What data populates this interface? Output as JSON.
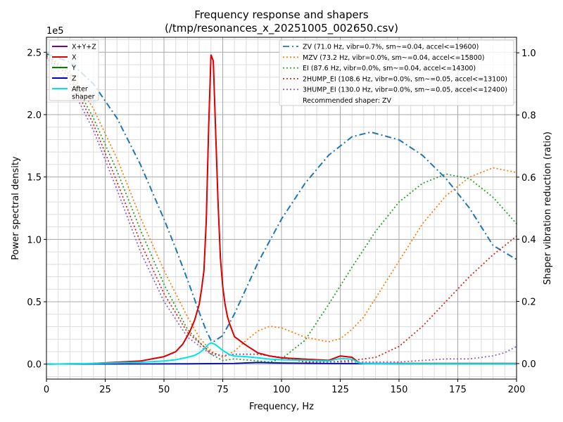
{
  "chart_data": {
    "type": "line",
    "title": "Frequency response and shapers",
    "subtitle": "(/tmp/resonances_x_20251005_002650.csv)",
    "xlabel": "Frequency, Hz",
    "ylabel": "Power spectral density",
    "ylabel_right": "Shaper vibration reduction (ratio)",
    "sci_label": "1e5",
    "xlim": [
      0,
      200
    ],
    "ylim": [
      -0.12,
      2.62
    ],
    "ylim_right": [
      -0.05,
      1.05
    ],
    "x_ticks": [
      0,
      25,
      50,
      75,
      100,
      125,
      150,
      175,
      200
    ],
    "y_ticks": [
      0.0,
      0.5,
      1.0,
      1.5,
      2.0,
      2.5
    ],
    "y_tick_labels": [
      "0.0",
      "0.5",
      "1.0",
      "1.5",
      "2.0",
      "2.5"
    ],
    "y_right_ticks": [
      0.0,
      0.2,
      0.4,
      0.6,
      0.8,
      1.0
    ],
    "y_right_tick_labels": [
      "0.0",
      "0.2",
      "0.4",
      "0.6",
      "0.8",
      "1.0"
    ],
    "x_tick_labels": [
      "0",
      "25",
      "50",
      "75",
      "100",
      "125",
      "150",
      "175",
      "200"
    ],
    "grid": true,
    "psd_series": [
      {
        "name": "X+Y+Z",
        "color": "#800080",
        "dash": "solid",
        "x": [
          0,
          20,
          40,
          50,
          55,
          58,
          61,
          63,
          65,
          66,
          67,
          68,
          69,
          70,
          71,
          72,
          73,
          74,
          75,
          76,
          77,
          78,
          80,
          85,
          90,
          95,
          100,
          110,
          120,
          125,
          130,
          133,
          135,
          150,
          175,
          200
        ],
        "y": [
          0,
          0.005,
          0.025,
          0.06,
          0.1,
          0.16,
          0.26,
          0.35,
          0.48,
          0.6,
          0.75,
          1.15,
          1.9,
          2.48,
          2.43,
          1.85,
          1.3,
          0.85,
          0.62,
          0.48,
          0.38,
          0.32,
          0.22,
          0.15,
          0.09,
          0.065,
          0.05,
          0.04,
          0.03,
          0.065,
          0.055,
          0.01,
          0.005,
          0.005,
          0.005,
          0.005
        ]
      },
      {
        "name": "X",
        "color": "#e00000",
        "dash": "solid",
        "x": [
          0,
          20,
          40,
          50,
          55,
          58,
          61,
          63,
          65,
          66,
          67,
          68,
          69,
          70,
          71,
          72,
          73,
          74,
          75,
          76,
          77,
          78,
          80,
          85,
          90,
          95,
          100,
          110,
          120,
          125,
          130,
          133,
          135,
          150,
          175,
          200
        ],
        "y": [
          0,
          0.005,
          0.025,
          0.06,
          0.1,
          0.16,
          0.26,
          0.35,
          0.48,
          0.6,
          0.75,
          1.15,
          1.9,
          2.48,
          2.43,
          1.85,
          1.3,
          0.85,
          0.62,
          0.48,
          0.38,
          0.32,
          0.22,
          0.15,
          0.09,
          0.065,
          0.05,
          0.04,
          0.03,
          0.065,
          0.055,
          0.01,
          0.005,
          0.005,
          0.005,
          0.005
        ]
      },
      {
        "name": "Y",
        "color": "#008000",
        "dash": "solid",
        "x": [
          0,
          40,
          60,
          80,
          90,
          100,
          120,
          135,
          150,
          200
        ],
        "y": [
          0,
          0.002,
          0.004,
          0.006,
          0.015,
          0.01,
          0.006,
          0.004,
          0.003,
          0.002
        ]
      },
      {
        "name": "Z",
        "color": "#0000c0",
        "dash": "solid",
        "x": [
          0,
          40,
          60,
          80,
          90,
          100,
          120,
          135,
          150,
          200
        ],
        "y": [
          0,
          0.001,
          0.002,
          0.006,
          0.012,
          0.008,
          0.005,
          0.003,
          0.002,
          0.001
        ]
      },
      {
        "name": "After\nshaper",
        "color": "#00e5e5",
        "dash": "solid",
        "x": [
          0,
          20,
          40,
          50,
          55,
          60,
          63,
          65,
          67,
          69,
          70,
          71,
          72,
          73,
          75,
          78,
          80,
          85,
          90,
          95,
          100,
          110,
          120,
          125,
          130,
          133,
          135,
          150,
          200
        ],
        "y": [
          0,
          0.005,
          0.015,
          0.025,
          0.035,
          0.055,
          0.07,
          0.09,
          0.12,
          0.16,
          0.17,
          0.165,
          0.155,
          0.14,
          0.11,
          0.075,
          0.065,
          0.06,
          0.05,
          0.04,
          0.035,
          0.03,
          0.025,
          0.045,
          0.04,
          0.01,
          0.005,
          0.003,
          0.003
        ]
      }
    ],
    "shaper_series": [
      {
        "name": "ZV (71.0 Hz, vibr=0.7%, sm~=0.04, accel<=19600)",
        "color": "#1f77b4",
        "dash": "dashdot",
        "x": [
          0,
          10,
          20,
          30,
          40,
          50,
          55,
          60,
          65,
          68,
          70,
          71,
          72,
          75,
          80,
          90,
          100,
          110,
          120,
          130,
          138,
          150,
          160,
          170,
          180,
          190,
          200
        ],
        "y": [
          0.997,
          0.97,
          0.9,
          0.79,
          0.64,
          0.465,
          0.37,
          0.27,
          0.165,
          0.105,
          0.075,
          0.07,
          0.075,
          0.09,
          0.16,
          0.325,
          0.465,
          0.58,
          0.67,
          0.73,
          0.745,
          0.72,
          0.67,
          0.595,
          0.5,
          0.38,
          0.335
        ]
      },
      {
        "name": "MZV (73.2 Hz, vibr=0.0%, sm~=0.04, accel<=15800)",
        "color": "#ff7f0e",
        "dash": "dot",
        "x": [
          0,
          10,
          20,
          30,
          40,
          50,
          60,
          65,
          70,
          75,
          80,
          85,
          90,
          95,
          100,
          110,
          120,
          125,
          130,
          135,
          150,
          160,
          170,
          180,
          190,
          200
        ],
        "y": [
          0.995,
          0.94,
          0.82,
          0.66,
          0.47,
          0.3,
          0.15,
          0.085,
          0.04,
          0.02,
          0.04,
          0.075,
          0.105,
          0.12,
          0.115,
          0.085,
          0.07,
          0.08,
          0.11,
          0.15,
          0.33,
          0.45,
          0.54,
          0.6,
          0.63,
          0.615
        ]
      },
      {
        "name": "EI (87.6 Hz, vibr=0.0%, sm~=0.04, accel<=14300)",
        "color": "#2ca02c",
        "dash": "dot",
        "x": [
          0,
          10,
          20,
          30,
          40,
          50,
          60,
          70,
          75,
          80,
          88,
          95,
          100,
          110,
          120,
          130,
          140,
          150,
          160,
          170,
          180,
          190,
          200
        ],
        "y": [
          0.995,
          0.93,
          0.79,
          0.62,
          0.43,
          0.255,
          0.11,
          0.03,
          0.01,
          0.015,
          0.01,
          0.005,
          0.015,
          0.075,
          0.19,
          0.31,
          0.425,
          0.52,
          0.58,
          0.61,
          0.595,
          0.535,
          0.45
        ]
      },
      {
        "name": "2HUMP_EI (108.6 Hz, vibr=0.0%, sm~=0.05, accel<=13100)",
        "color": "#d62728",
        "dash": "dot",
        "x": [
          0,
          10,
          20,
          30,
          40,
          50,
          60,
          70,
          75,
          80,
          90,
          100,
          110,
          120,
          130,
          140,
          150,
          160,
          170,
          180,
          190,
          200
        ],
        "y": [
          0.99,
          0.92,
          0.77,
          0.585,
          0.39,
          0.225,
          0.1,
          0.035,
          0.025,
          0.03,
          0.03,
          0.02,
          0.005,
          0.005,
          0.01,
          0.02,
          0.055,
          0.12,
          0.2,
          0.28,
          0.35,
          0.41
        ]
      },
      {
        "name": "3HUMP_EI (130.0 Hz, vibr=0.0%, sm~=0.05, accel<=12400)",
        "color": "#9467bd",
        "dash": "dot",
        "x": [
          0,
          10,
          20,
          30,
          40,
          50,
          60,
          70,
          75,
          80,
          90,
          100,
          110,
          120,
          130,
          140,
          150,
          160,
          170,
          180,
          190,
          195,
          200
        ],
        "y": [
          0.985,
          0.9,
          0.75,
          0.56,
          0.36,
          0.2,
          0.085,
          0.03,
          0.025,
          0.03,
          0.03,
          0.02,
          0.01,
          0.005,
          0.005,
          0.005,
          0.005,
          0.01,
          0.015,
          0.015,
          0.025,
          0.035,
          0.055
        ]
      }
    ],
    "legend_left": {
      "placement": "top-left"
    },
    "legend_right": {
      "placement": "top-right",
      "note": "Recommended shaper: ZV"
    }
  }
}
